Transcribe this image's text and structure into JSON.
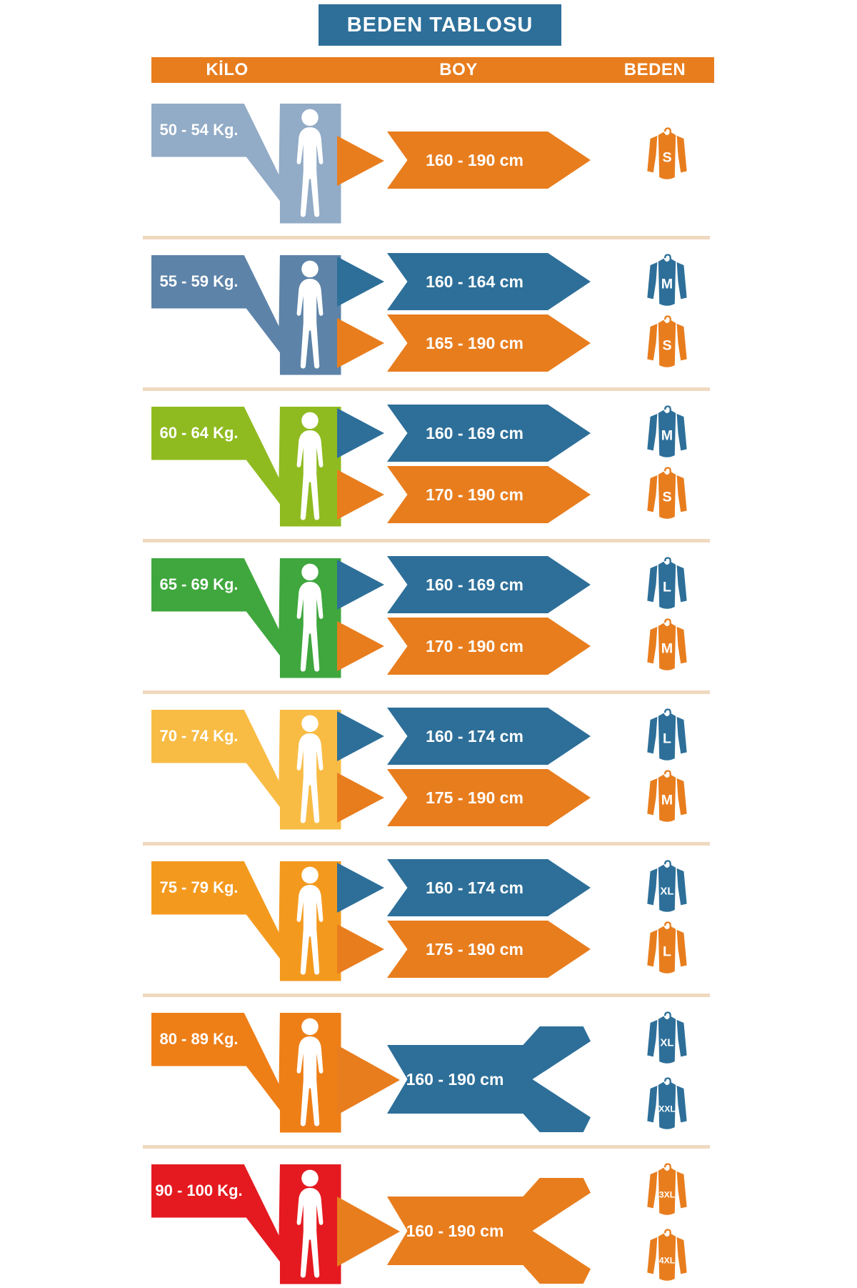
{
  "title": "BEDEN TABLOSU",
  "header": {
    "kilo": "KİLO",
    "boy": "BOY",
    "beden": "BEDEN"
  },
  "colors": {
    "blue": "#2d6f99",
    "orange": "#e87d1e",
    "title_bg": "#2d6f99",
    "header_bg": "#e87d1e",
    "divider": "#efd9bf",
    "text": "#ffffff"
  },
  "rows": [
    {
      "weight": "50 - 54 Kg.",
      "weight_color": "#92abc6",
      "layout": "single",
      "mappings": [
        {
          "height": "160 - 190 cm",
          "color": "orange",
          "sizes": [
            "S"
          ]
        }
      ]
    },
    {
      "weight": "55 - 59 Kg.",
      "weight_color": "#5d83a8",
      "layout": "double",
      "mappings": [
        {
          "height": "160 - 164 cm",
          "color": "blue",
          "sizes": [
            "M"
          ]
        },
        {
          "height": "165 - 190 cm",
          "color": "orange",
          "sizes": [
            "S"
          ]
        }
      ]
    },
    {
      "weight": "60 - 64 Kg.",
      "weight_color": "#8fbb20",
      "layout": "double",
      "mappings": [
        {
          "height": "160 - 169 cm",
          "color": "blue",
          "sizes": [
            "M"
          ]
        },
        {
          "height": "170 - 190 cm",
          "color": "orange",
          "sizes": [
            "S"
          ]
        }
      ]
    },
    {
      "weight": "65 - 69 Kg.",
      "weight_color": "#3fa73d",
      "layout": "double",
      "mappings": [
        {
          "height": "160 - 169 cm",
          "color": "blue",
          "sizes": [
            "L"
          ]
        },
        {
          "height": "170 - 190 cm",
          "color": "orange",
          "sizes": [
            "M"
          ]
        }
      ]
    },
    {
      "weight": "70 - 74 Kg.",
      "weight_color": "#f8bc45",
      "layout": "double",
      "mappings": [
        {
          "height": "160 - 174 cm",
          "color": "blue",
          "sizes": [
            "L"
          ]
        },
        {
          "height": "175 - 190 cm",
          "color": "orange",
          "sizes": [
            "M"
          ]
        }
      ]
    },
    {
      "weight": "75 - 79 Kg.",
      "weight_color": "#f39a1e",
      "layout": "double",
      "mappings": [
        {
          "height": "160 - 174 cm",
          "color": "blue",
          "sizes": [
            "XL"
          ]
        },
        {
          "height": "175 - 190 cm",
          "color": "orange",
          "sizes": [
            "L"
          ]
        }
      ]
    },
    {
      "weight": "80 - 89 Kg.",
      "weight_color": "#ee7f17",
      "layout": "fork",
      "mappings": [
        {
          "height": "160 - 190 cm",
          "color": "blue",
          "sizes": [
            "XL",
            "XXL"
          ]
        }
      ]
    },
    {
      "weight": "90 - 100 Kg.",
      "weight_color": "#e41a20",
      "layout": "fork",
      "mappings": [
        {
          "height": "160 - 190 cm",
          "color": "orange",
          "sizes": [
            "3XL",
            "4XL"
          ]
        }
      ]
    }
  ]
}
